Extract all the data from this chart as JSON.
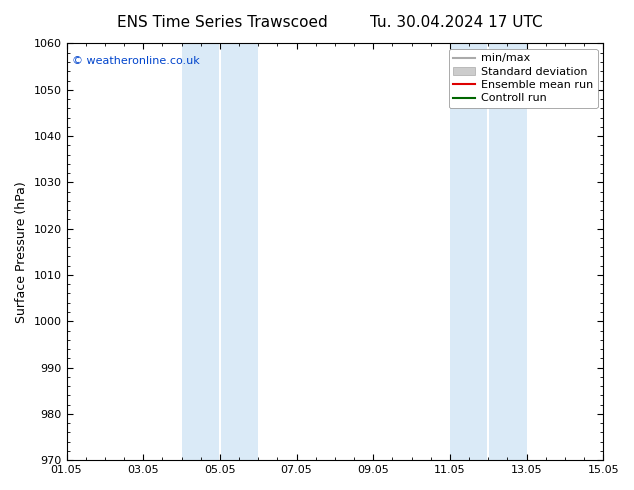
{
  "title_left": "ENS Time Series Trawscoed",
  "title_right": "Tu. 30.04.2024 17 UTC",
  "ylabel": "Surface Pressure (hPa)",
  "ylim": [
    970,
    1060
  ],
  "yticks": [
    970,
    980,
    990,
    1000,
    1010,
    1020,
    1030,
    1040,
    1050,
    1060
  ],
  "xlim_start": 0,
  "xlim_end": 14,
  "xtick_positions": [
    0,
    2,
    4,
    6,
    8,
    10,
    12,
    14
  ],
  "xtick_labels": [
    "01.05",
    "03.05",
    "05.05",
    "07.05",
    "09.05",
    "11.05",
    "13.05",
    "15.05"
  ],
  "background_color": "#ffffff",
  "plot_bg_color": "#ffffff",
  "shaded_bands": [
    {
      "x_start": 3.0,
      "x_end": 4.0,
      "color": "#daeaf7"
    },
    {
      "x_start": 4.0,
      "x_end": 5.0,
      "color": "#daeaf7"
    },
    {
      "x_start": 10.0,
      "x_end": 11.0,
      "color": "#daeaf7"
    },
    {
      "x_start": 11.0,
      "x_end": 12.0,
      "color": "#daeaf7"
    }
  ],
  "copyright_text": "© weatheronline.co.uk",
  "copyright_color": "#0044cc",
  "legend_items": [
    {
      "label": "min/max",
      "color": "#aaaaaa",
      "lw": 1.5,
      "type": "line"
    },
    {
      "label": "Standard deviation",
      "color": "#cccccc",
      "lw": 8,
      "type": "band"
    },
    {
      "label": "Ensemble mean run",
      "color": "#dd0000",
      "lw": 1.5,
      "type": "line"
    },
    {
      "label": "Controll run",
      "color": "#006600",
      "lw": 1.5,
      "type": "line"
    }
  ],
  "title_fontsize": 11,
  "tick_fontsize": 8,
  "ylabel_fontsize": 9,
  "legend_fontsize": 8
}
